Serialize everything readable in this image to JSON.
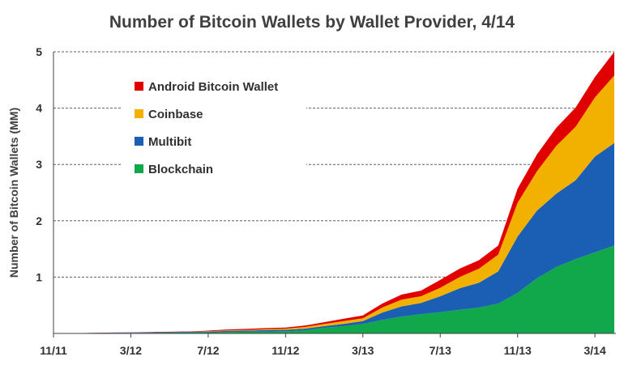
{
  "chart_data": {
    "type": "area",
    "stacked": true,
    "title": "Number of Bitcoin Wallets by Wallet Provider, 4/14",
    "ylabel": "Number of Bitcoin Wallets (MM)",
    "xlabel": "",
    "ylim": [
      0,
      5
    ],
    "yticks": [
      1,
      2,
      3,
      4,
      5
    ],
    "grid": "dashed horizontal",
    "legend_position": "upper-left",
    "x_tick_labels": [
      "11/11",
      "3/12",
      "7/12",
      "11/12",
      "3/13",
      "7/13",
      "11/13",
      "3/14"
    ],
    "x": [
      "11/11",
      "12/11",
      "1/12",
      "2/12",
      "3/12",
      "4/12",
      "5/12",
      "6/12",
      "7/12",
      "8/12",
      "9/12",
      "10/12",
      "11/12",
      "12/12",
      "1/13",
      "2/13",
      "3/13",
      "4/13",
      "5/13",
      "6/13",
      "7/13",
      "8/13",
      "9/13",
      "10/13",
      "11/13",
      "12/13",
      "1/14",
      "2/14",
      "3/14",
      "4/14"
    ],
    "series": [
      {
        "name": "Blockchain",
        "color": "#10a84a",
        "values": [
          0,
          0,
          0.005,
          0.008,
          0.01,
          0.012,
          0.015,
          0.018,
          0.02,
          0.025,
          0.03,
          0.035,
          0.04,
          0.055,
          0.1,
          0.13,
          0.17,
          0.24,
          0.3,
          0.34,
          0.38,
          0.42,
          0.46,
          0.53,
          0.72,
          0.98,
          1.18,
          1.32,
          1.44,
          1.56
        ]
      },
      {
        "name": "Multibit",
        "color": "#1a5fb4",
        "values": [
          0,
          0,
          0.003,
          0.005,
          0.007,
          0.008,
          0.01,
          0.012,
          0.015,
          0.02,
          0.02,
          0.025,
          0.025,
          0.03,
          0.03,
          0.04,
          0.05,
          0.13,
          0.18,
          0.2,
          0.28,
          0.38,
          0.44,
          0.57,
          1.0,
          1.2,
          1.3,
          1.4,
          1.7,
          1.82
        ]
      },
      {
        "name": "Coinbase",
        "color": "#f2b100",
        "values": [
          0,
          0,
          0,
          0,
          0,
          0,
          0,
          0,
          0.005,
          0.01,
          0.01,
          0.015,
          0.02,
          0.03,
          0.04,
          0.05,
          0.05,
          0.09,
          0.12,
          0.12,
          0.15,
          0.2,
          0.25,
          0.3,
          0.6,
          0.7,
          0.85,
          0.95,
          1.05,
          1.2
        ]
      },
      {
        "name": "Android Bitcoin Wallet",
        "color": "#e00000",
        "values": [
          0,
          0,
          0.002,
          0.003,
          0.003,
          0.004,
          0.005,
          0.006,
          0.01,
          0.015,
          0.02,
          0.02,
          0.02,
          0.025,
          0.03,
          0.04,
          0.05,
          0.07,
          0.09,
          0.1,
          0.14,
          0.15,
          0.15,
          0.16,
          0.25,
          0.3,
          0.32,
          0.34,
          0.36,
          0.42
        ]
      }
    ],
    "legend_order": [
      "Android Bitcoin Wallet",
      "Coinbase",
      "Multibit",
      "Blockchain"
    ]
  }
}
